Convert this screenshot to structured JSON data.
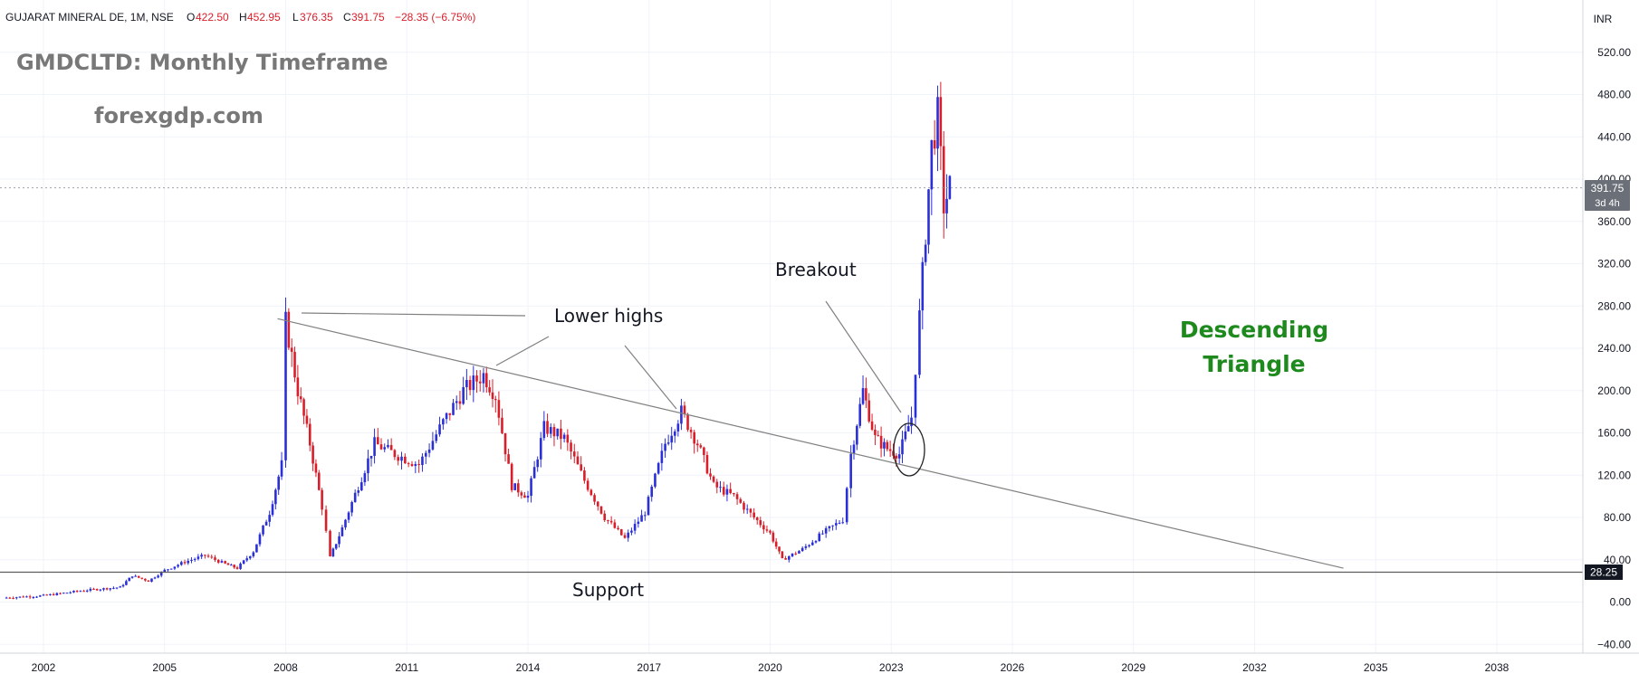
{
  "header": {
    "symbol": "GUJARAT MINERAL DE, 1M, NSE",
    "o_label": "O",
    "o_value": "422.50",
    "h_label": "H",
    "h_value": "452.95",
    "l_label": "L",
    "l_value": "376.35",
    "c_label": "C",
    "c_value": "391.75",
    "change": "−28.35 (−6.75%)"
  },
  "currency": "INR",
  "price_badge": {
    "value": "391.75",
    "countdown": "3d 4h"
  },
  "support_badge": "28.25",
  "chart_data": {
    "type": "candlestick",
    "title": "GMDCLTD: Monthly Timeframe",
    "subtitle": "forexgdp.com",
    "ylim": [
      -40,
      520
    ],
    "y_ticks": [
      "520.00",
      "480.00",
      "440.00",
      "400.00",
      "360.00",
      "320.00",
      "280.00",
      "240.00",
      "200.00",
      "160.00",
      "120.00",
      "80.00",
      "40.00",
      "0.00",
      "−40.00"
    ],
    "x_ticks": [
      "2002",
      "2005",
      "2008",
      "2011",
      "2014",
      "2017",
      "2020",
      "2023",
      "2026",
      "2029",
      "2032",
      "2035",
      "2038"
    ],
    "grid": true,
    "colors": {
      "up": "#2a2fd6",
      "down": "#d91e2a",
      "line": "#808080",
      "label_green": "#1e8a1e"
    },
    "candles_monthly_close": [
      [
        2001.0,
        4
      ],
      [
        2002.0,
        6
      ],
      [
        2003.0,
        11
      ],
      [
        2003.9,
        14
      ],
      [
        2004.2,
        25
      ],
      [
        2004.6,
        20
      ],
      [
        2005.0,
        30
      ],
      [
        2005.5,
        38
      ],
      [
        2006.0,
        44
      ],
      [
        2006.5,
        36
      ],
      [
        2006.8,
        32
      ],
      [
        2007.2,
        48
      ],
      [
        2007.6,
        85
      ],
      [
        2007.9,
        130
      ],
      [
        2008.0,
        265
      ],
      [
        2008.3,
        200
      ],
      [
        2008.6,
        150
      ],
      [
        2008.9,
        90
      ],
      [
        2009.1,
        42
      ],
      [
        2009.4,
        70
      ],
      [
        2009.8,
        110
      ],
      [
        2010.2,
        150
      ],
      [
        2010.7,
        140
      ],
      [
        2011.3,
        130
      ],
      [
        2011.9,
        170
      ],
      [
        2012.4,
        200
      ],
      [
        2012.9,
        215
      ],
      [
        2013.2,
        195
      ],
      [
        2013.6,
        110
      ],
      [
        2014.0,
        100
      ],
      [
        2014.4,
        165
      ],
      [
        2014.9,
        155
      ],
      [
        2015.4,
        115
      ],
      [
        2015.9,
        80
      ],
      [
        2016.4,
        60
      ],
      [
        2016.9,
        85
      ],
      [
        2017.4,
        150
      ],
      [
        2017.8,
        180
      ],
      [
        2018.2,
        150
      ],
      [
        2018.6,
        110
      ],
      [
        2019.1,
        100
      ],
      [
        2019.6,
        80
      ],
      [
        2020.0,
        65
      ],
      [
        2020.3,
        40
      ],
      [
        2020.8,
        50
      ],
      [
        2021.3,
        65
      ],
      [
        2021.8,
        78
      ],
      [
        2022.0,
        140
      ],
      [
        2022.3,
        200
      ],
      [
        2022.6,
        155
      ],
      [
        2022.9,
        145
      ],
      [
        2023.2,
        140
      ],
      [
        2023.5,
        175
      ],
      [
        2023.7,
        270
      ],
      [
        2023.85,
        350
      ],
      [
        2024.0,
        430
      ],
      [
        2024.15,
        460
      ],
      [
        2024.3,
        375
      ],
      [
        2024.45,
        392
      ]
    ],
    "trendline": {
      "from": [
        2007.8,
        268
      ],
      "to": [
        2034.2,
        32
      ]
    },
    "support_level": 28.25,
    "annotations": {
      "lower_highs": "Lower highs",
      "breakout": "Breakout",
      "support": "Support",
      "pattern_line1": "Descending",
      "pattern_line2": "Triangle"
    }
  }
}
